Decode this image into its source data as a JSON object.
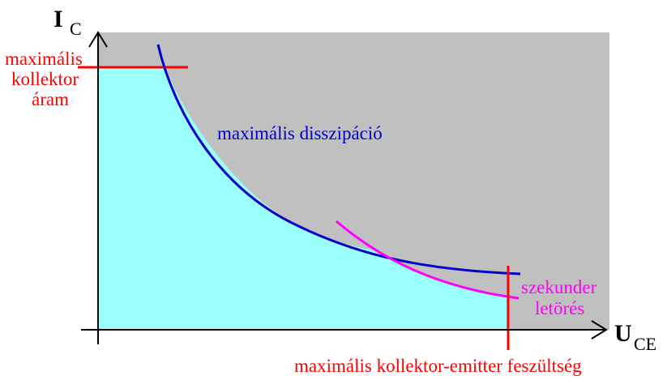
{
  "axes": {
    "y_main": "I",
    "y_sub": "C",
    "x_main": "U",
    "x_sub": "CE"
  },
  "labels": {
    "max_current": [
      "maximális",
      "kollektor",
      "áram"
    ],
    "max_dissipation": "maximális disszipáció",
    "secondary_breakdown": [
      "szekunder",
      "letörés"
    ],
    "max_voltage": "maximális kollektor-emitter feszültség"
  },
  "colors": {
    "gray_region": "#c0c0c0",
    "safe_area": "#99ffff",
    "limit_lines": "#ff0000",
    "dissipation_curve": "#0000cc",
    "breakdown_curve": "#ff00ff",
    "axes": "#000000"
  }
}
